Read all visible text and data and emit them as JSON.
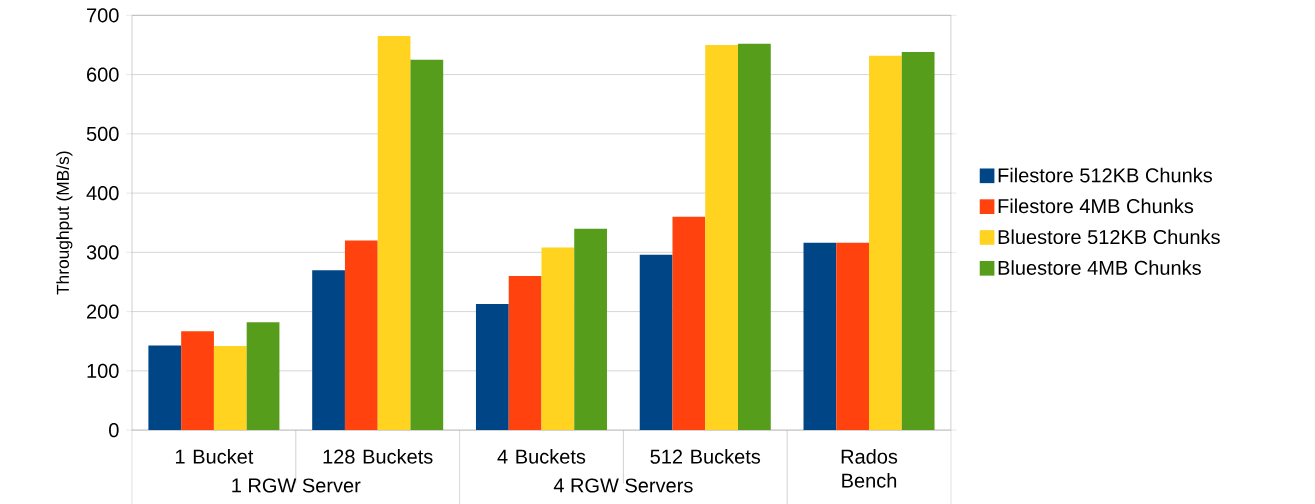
{
  "chart_data": {
    "type": "bar",
    "ylabel": "Throughput (MB/s)",
    "categories": [
      "1 Bucket",
      "128 Buckets",
      "4 Buckets",
      "512 Buckets",
      "Rados Bench"
    ],
    "annotations": [
      "1 RGW Server",
      "4 RGW Servers"
    ],
    "series": [
      {
        "name": "Filestore 512KB Chunks",
        "color": "#004586",
        "values": [
          143,
          270,
          213,
          296,
          316
        ]
      },
      {
        "name": "Filestore 4MB Chunks",
        "color": "#ff420e",
        "values": [
          167,
          320,
          260,
          360,
          316
        ]
      },
      {
        "name": "Bluestore 512KB Chunks",
        "color": "#ffd320",
        "values": [
          142,
          665,
          308,
          650,
          632
        ]
      },
      {
        "name": "Bluestore 4MB Chunks",
        "color": "#579d1c",
        "values": [
          182,
          625,
          340,
          652,
          638
        ]
      }
    ],
    "ylim": [
      0,
      700
    ],
    "yticks": [
      0,
      100,
      200,
      300,
      400,
      500,
      600,
      700
    ],
    "grid": "y",
    "legend": "right"
  }
}
